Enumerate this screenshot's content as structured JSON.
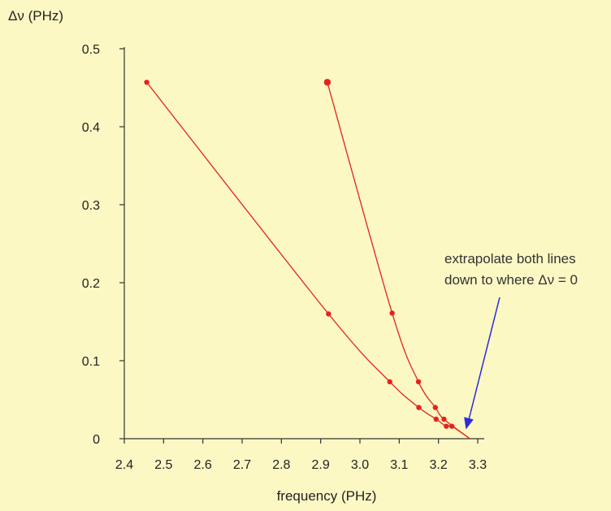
{
  "chart_data": {
    "type": "scatter",
    "xlabel": "frequency (PHz)",
    "ylabel": "Δν (PHz)",
    "xlim": [
      2.4,
      3.3
    ],
    "ylim": [
      0,
      0.5
    ],
    "x_ticks": [
      "2.4",
      "2.5",
      "2.6",
      "2.7",
      "2.8",
      "2.9",
      "3.0",
      "3.1",
      "3.2",
      "3.3"
    ],
    "y_ticks": [
      "0",
      "0.1",
      "0.2",
      "0.3",
      "0.4",
      "0.5"
    ],
    "grid": false,
    "series": [
      {
        "points": [
          {
            "x": 2.457,
            "y": 0.457
          },
          {
            "x": 2.92,
            "y": 0.16
          },
          {
            "x": 3.076,
            "y": 0.073
          },
          {
            "x": 3.15,
            "y": 0.04
          },
          {
            "x": 3.194,
            "y": 0.025
          },
          {
            "x": 3.22,
            "y": 0.016
          },
          {
            "x": 3.234,
            "y": 0.016
          }
        ],
        "line_to": {
          "x": 3.28,
          "y": 0
        },
        "color": "#e8211c"
      },
      {
        "points": [
          {
            "x": 2.917,
            "y": 0.457
          },
          {
            "x": 3.082,
            "y": 0.161
          },
          {
            "x": 3.149,
            "y": 0.073
          },
          {
            "x": 3.192,
            "y": 0.04
          },
          {
            "x": 3.214,
            "y": 0.025
          }
        ],
        "line_to": {
          "x": 3.28,
          "y": 0
        },
        "color": "#e8211c"
      }
    ],
    "annotation": {
      "lines": [
        "extrapolate both lines",
        "down to where Δν = 0"
      ],
      "arrow_color": "#2b2bdc",
      "arrow_target": {
        "x": 3.27,
        "y": 0.012
      }
    }
  }
}
